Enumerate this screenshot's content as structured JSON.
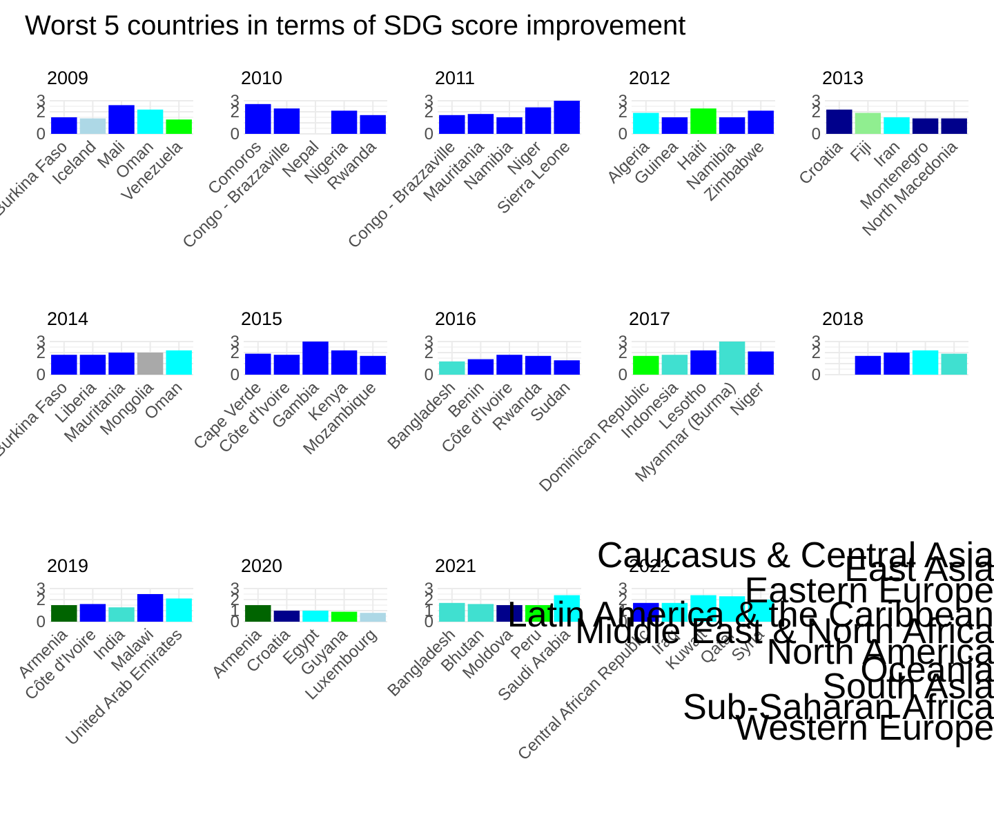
{
  "title": "Worst 5 countries in terms of SDG score improvement",
  "colors": {
    "grid": "#ebebeb",
    "axis_text": "#4d4d4d",
    "title_text": "#000000"
  },
  "region_legend_overlay": [
    "Caucasus & Central Asia",
    "East Asia",
    "Eastern Europe",
    "Latin America & the Caribbean",
    "Middle East & North Africa",
    "North America",
    "Oceania",
    "South Asia",
    "Sub-Saharan Africa",
    "Western Europe"
  ],
  "chart_data": [
    {
      "type": "bar",
      "title": "2009",
      "ylim": [
        0,
        3
      ],
      "yticks": [
        0,
        2,
        3
      ],
      "grid": true,
      "categories": [
        "Burkina Faso",
        "Iceland",
        "Mali",
        "Oman",
        "Venezuela"
      ],
      "values": [
        1.5,
        1.4,
        2.6,
        2.2,
        1.3
      ],
      "colors": [
        "#0000ff",
        "#add8e6",
        "#0000ff",
        "#00ffff",
        "#00ff00"
      ]
    },
    {
      "type": "bar",
      "title": "2010",
      "ylim": [
        0,
        3
      ],
      "yticks": [
        0,
        2,
        3
      ],
      "grid": true,
      "categories": [
        "Comoros",
        "Congo - Brazzaville",
        "Nepal",
        "Nigeria",
        "Rwanda"
      ],
      "values": [
        2.7,
        2.3,
        0,
        2.1,
        1.7
      ],
      "colors": [
        "#0000ff",
        "#0000ff",
        "#0000ff",
        "#0000ff",
        "#0000ff"
      ]
    },
    {
      "type": "bar",
      "title": "2011",
      "ylim": [
        0,
        3
      ],
      "yticks": [
        0,
        2,
        3
      ],
      "grid": true,
      "categories": [
        "Congo - Brazzaville",
        "Mauritania",
        "Namibia",
        "Niger",
        "Sierra Leone"
      ],
      "values": [
        1.7,
        1.8,
        1.5,
        2.4,
        3.0
      ],
      "colors": [
        "#0000ff",
        "#0000ff",
        "#0000ff",
        "#0000ff",
        "#0000ff"
      ]
    },
    {
      "type": "bar",
      "title": "2012",
      "ylim": [
        0,
        3
      ],
      "yticks": [
        0,
        2,
        3
      ],
      "grid": true,
      "categories": [
        "Algeria",
        "Guinea",
        "Haiti",
        "Namibia",
        "Zimbabwe"
      ],
      "values": [
        1.9,
        1.5,
        2.3,
        1.5,
        2.1
      ],
      "colors": [
        "#00ffff",
        "#0000ff",
        "#00ff00",
        "#0000ff",
        "#0000ff"
      ]
    },
    {
      "type": "bar",
      "title": "2013",
      "ylim": [
        0,
        3
      ],
      "yticks": [
        0,
        2,
        3
      ],
      "grid": true,
      "categories": [
        "Croatia",
        "Fiji",
        "Iran",
        "Montenegro",
        "North Macedonia"
      ],
      "values": [
        2.2,
        1.9,
        1.5,
        1.4,
        1.4
      ],
      "colors": [
        "#00008b",
        "#90ee90",
        "#00ffff",
        "#00008b",
        "#00008b"
      ]
    },
    {
      "type": "bar",
      "title": "2014",
      "ylim": [
        0,
        3
      ],
      "yticks": [
        0,
        2,
        3
      ],
      "grid": true,
      "categories": [
        "Burkina Faso",
        "Liberia",
        "Mauritania",
        "Mongolia",
        "Oman"
      ],
      "values": [
        1.8,
        1.8,
        2.0,
        2.0,
        2.2
      ],
      "colors": [
        "#0000ff",
        "#0000ff",
        "#0000ff",
        "#a9a9a9",
        "#00ffff"
      ]
    },
    {
      "type": "bar",
      "title": "2015",
      "ylim": [
        0,
        3
      ],
      "yticks": [
        0,
        2,
        3
      ],
      "grid": true,
      "categories": [
        "Cape Verde",
        "Côte d'Ivoire",
        "Gambia",
        "Kenya",
        "Mozambique"
      ],
      "values": [
        1.9,
        1.8,
        3.0,
        2.2,
        1.7
      ],
      "colors": [
        "#0000ff",
        "#0000ff",
        "#0000ff",
        "#0000ff",
        "#0000ff"
      ]
    },
    {
      "type": "bar",
      "title": "2016",
      "ylim": [
        0,
        3
      ],
      "yticks": [
        0,
        2,
        3
      ],
      "grid": true,
      "categories": [
        "Bangladesh",
        "Benin",
        "Côte d'Ivoire",
        "Rwanda",
        "Sudan"
      ],
      "values": [
        1.2,
        1.4,
        1.8,
        1.7,
        1.3
      ],
      "colors": [
        "#40e0d0",
        "#0000ff",
        "#0000ff",
        "#0000ff",
        "#0000ff"
      ]
    },
    {
      "type": "bar",
      "title": "2017",
      "ylim": [
        0,
        3
      ],
      "yticks": [
        0,
        2,
        3
      ],
      "grid": true,
      "categories": [
        "Dominican Republic",
        "Indonesia",
        "Lesotho",
        "Myanmar (Burma)",
        "Niger"
      ],
      "values": [
        1.7,
        1.8,
        2.2,
        3.0,
        2.1
      ],
      "colors": [
        "#00ff00",
        "#40e0d0",
        "#0000ff",
        "#40e0d0",
        "#0000ff"
      ]
    },
    {
      "type": "bar",
      "title": "2018",
      "ylim": [
        0,
        3
      ],
      "yticks": [
        0,
        2,
        3
      ],
      "grid": true,
      "categories": [
        "",
        "",
        "",
        "",
        ""
      ],
      "values": [
        0,
        1.7,
        2.0,
        2.2,
        1.9
      ],
      "colors": [
        "#0000ff",
        "#0000ff",
        "#0000ff",
        "#00ffff",
        "#40e0d0"
      ]
    },
    {
      "type": "bar",
      "title": "2019",
      "ylim": [
        0,
        3
      ],
      "yticks": [
        0,
        2,
        3
      ],
      "grid": true,
      "categories": [
        "Armenia",
        "Côte d'Ivoire",
        "India",
        "Malawi",
        "United Arab Emirates"
      ],
      "values": [
        1.5,
        1.6,
        1.3,
        2.5,
        2.1
      ],
      "colors": [
        "#006400",
        "#0000ff",
        "#40e0d0",
        "#0000ff",
        "#00ffff"
      ]
    },
    {
      "type": "bar",
      "title": "2020",
      "ylim": [
        0,
        3
      ],
      "yticks": [
        0,
        1,
        2,
        3
      ],
      "grid": true,
      "categories": [
        "Armenia",
        "Croatia",
        "Egypt",
        "Guyana",
        "Luxembourg"
      ],
      "values": [
        1.5,
        1.0,
        1.0,
        0.9,
        0.8
      ],
      "colors": [
        "#006400",
        "#00008b",
        "#00ffff",
        "#00ff00",
        "#add8e6"
      ]
    },
    {
      "type": "bar",
      "title": "2021",
      "ylim": [
        0,
        3
      ],
      "yticks": [
        0,
        1,
        2,
        3
      ],
      "grid": true,
      "categories": [
        "Bangladesh",
        "Bhutan",
        "Moldova",
        "Peru",
        "Saudi Arabia"
      ],
      "values": [
        1.7,
        1.6,
        1.5,
        1.5,
        2.4
      ],
      "colors": [
        "#40e0d0",
        "#40e0d0",
        "#00008b",
        "#00ff00",
        "#00ffff"
      ]
    },
    {
      "type": "bar",
      "title": "2022",
      "ylim": [
        0,
        3
      ],
      "yticks": [
        0,
        1,
        2,
        3
      ],
      "grid": true,
      "categories": [
        "Central African Republic",
        "Iraq",
        "Kuwait",
        "Qatar",
        "Syria"
      ],
      "values": [
        1.7,
        1.7,
        2.4,
        2.3,
        2.0
      ],
      "colors": [
        "#0000ff",
        "#00ffff",
        "#00ffff",
        "#00ffff",
        "#00ffff"
      ]
    }
  ]
}
